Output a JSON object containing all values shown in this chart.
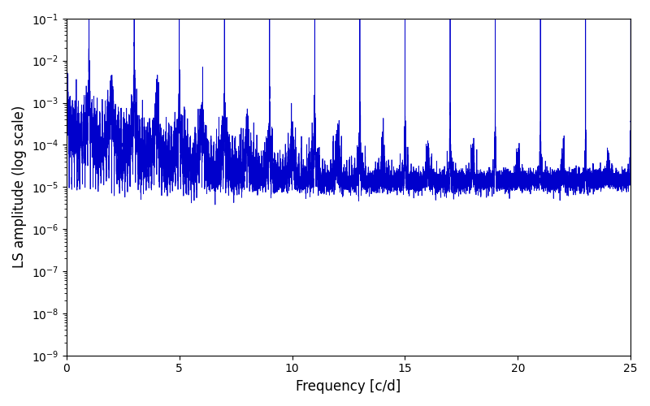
{
  "xlabel": "Frequency [c/d]",
  "ylabel": "LS amplitude (log scale)",
  "xlim": [
    0,
    25
  ],
  "ylim": [
    1e-09,
    0.1
  ],
  "line_color": "#0000cc",
  "line_width": 0.6,
  "xticks": [
    0,
    5,
    10,
    15,
    20,
    25
  ],
  "figsize": [
    8.0,
    5.0
  ],
  "dpi": 100,
  "seed": 42,
  "n_points": 12000,
  "freq_max": 25.0,
  "T_obs": 8.5,
  "baseline": 0.0001,
  "peak_env_scale": 0.02,
  "noise_sigma": 0.8
}
